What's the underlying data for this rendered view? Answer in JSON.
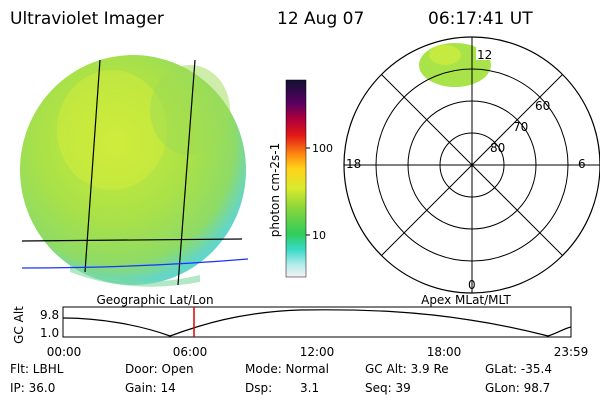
{
  "header": {
    "instrument": "Ultraviolet Imager",
    "date": "12 Aug 07",
    "time": "06:17:41 UT"
  },
  "colorbar": {
    "unit": "photon cm-2s-1",
    "ticks": [
      "100",
      "10"
    ]
  },
  "left_panel": {
    "label": "Geographic Lat/Lon"
  },
  "right_panel": {
    "label": "Apex MLat/MLT",
    "mlt_labels": {
      "top": "12",
      "bottom": "0",
      "left": "18",
      "right": "6"
    },
    "mlat_labels": [
      "60",
      "70",
      "80"
    ]
  },
  "altitude_plot": {
    "ylabel": "GC Alt",
    "yticks": [
      "9.8",
      "1.0"
    ],
    "xticks": [
      "00:00",
      "06:00",
      "12:00",
      "18:00",
      "23:59"
    ],
    "marker_time": "06:17:41"
  },
  "footer": {
    "filter": "Flt: LBHL",
    "door": "Door: Open",
    "mode": "Mode: Normal",
    "gc_alt": "GC Alt: 3.9 Re",
    "glat": "GLat: -35.4",
    "ip": "IP: 36.0",
    "gain": "Gain: 14",
    "dsp_label": "Dsp:",
    "dsp_value": "3.1",
    "seq": "Seq: 39",
    "glon": "GLon: 98.7"
  },
  "colors": {
    "disk_main": "#a8e34a",
    "disk_bright": "#dff03a",
    "disk_edge": "#5fd6c8",
    "grid_blue": "#1a33ff",
    "marker_red": "#dd0000"
  }
}
